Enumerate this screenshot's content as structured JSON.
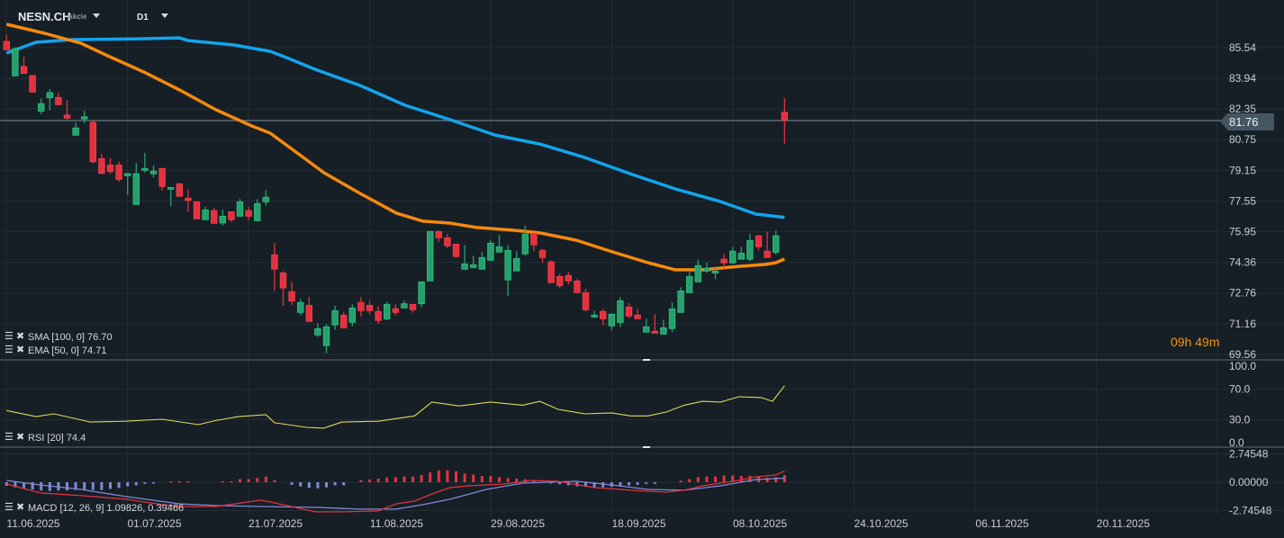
{
  "header": {
    "symbol": "NESN.CH",
    "instrument_type": "Akcie",
    "timeframe": "D1"
  },
  "countdown": "09h 49m",
  "current_price": "81.76",
  "colors": {
    "background": "#161f26",
    "up": "#26a06d",
    "down": "#e2323f",
    "sma": "#13a4ec",
    "ema": "#f6890f",
    "rsi": "#e0d85a",
    "macd": "#e2323f",
    "signal": "#7f8ad6"
  },
  "indicators": {
    "sma_label": "SMA [100,  0] 76.70",
    "ema_label": "EMA [50, 0] 74.71",
    "rsi_label": "RSI [20]  74.4",
    "macd_label": "MACD  [12,  26,  9] 1.09826,  0.39466"
  },
  "chart_data": [
    {
      "type": "candlestick",
      "pane": "price",
      "y_ticks": [
        "85.54",
        "83.94",
        "82.35",
        "80.75",
        "79.15",
        "77.55",
        "75.95",
        "74.36",
        "72.76",
        "71.16",
        "69.56"
      ],
      "ylim": [
        69.56,
        85.54
      ],
      "x_tick_labels": [
        "11.06.2025",
        "01.07.2025",
        "21.07.2025",
        "11.08.2025",
        "29.08.2025",
        "18.09.2025",
        "08.10.2025",
        "24.10.2025",
        "06.11.2025",
        "20.11.2025"
      ],
      "ohlc": [
        [
          85.87,
          86.2,
          85.43,
          85.43
        ],
        [
          84.07,
          85.55,
          84.07,
          85.48
        ],
        [
          84.56,
          85.07,
          84.2,
          84.2
        ],
        [
          84.09,
          84.09,
          83.23,
          83.23
        ],
        [
          82.23,
          82.9,
          82.09,
          82.63
        ],
        [
          82.93,
          83.38,
          82.27,
          83.2
        ],
        [
          82.95,
          83.2,
          82.57,
          82.57
        ],
        [
          82.03,
          82.8,
          81.8,
          81.87
        ],
        [
          80.98,
          81.65,
          80.98,
          81.36
        ],
        [
          81.83,
          82.26,
          81.62,
          81.94
        ],
        [
          81.65,
          81.7,
          79.5,
          79.6
        ],
        [
          79.76,
          80.0,
          78.99,
          78.99
        ],
        [
          79.43,
          79.81,
          78.95,
          79.09
        ],
        [
          79.43,
          79.62,
          78.57,
          78.68
        ],
        [
          78.87,
          79.01,
          77.87,
          78.98
        ],
        [
          77.37,
          79.54,
          77.37,
          78.97
        ],
        [
          79.15,
          80.06,
          79.04,
          79.25
        ],
        [
          78.97,
          79.4,
          78.78,
          79.11
        ],
        [
          79.25,
          79.25,
          78.1,
          78.31
        ],
        [
          78.17,
          78.26,
          77.29,
          78.26
        ],
        [
          78.45,
          78.5,
          77.8,
          77.8
        ],
        [
          77.7,
          78.14,
          76.98,
          77.59
        ],
        [
          77.51,
          77.51,
          76.62,
          76.62
        ],
        [
          76.58,
          77.25,
          76.58,
          77.09
        ],
        [
          77.05,
          77.2,
          76.39,
          76.39
        ],
        [
          76.41,
          77.1,
          76.27,
          76.76
        ],
        [
          76.99,
          76.99,
          76.46,
          76.58
        ],
        [
          76.76,
          77.65,
          76.76,
          77.51
        ],
        [
          77.05,
          77.25,
          76.56,
          76.76
        ],
        [
          76.53,
          77.65,
          76.48,
          77.42
        ],
        [
          77.51,
          78.12,
          77.32,
          77.75
        ],
        [
          74.75,
          75.37,
          72.87,
          74.0
        ],
        [
          73.81,
          73.9,
          72.1,
          73.02
        ],
        [
          72.83,
          73.34,
          72.15,
          72.34
        ],
        [
          71.75,
          72.45,
          71.61,
          72.27
        ],
        [
          72.12,
          72.56,
          71.28,
          71.28
        ],
        [
          70.58,
          71.2,
          70.47,
          70.9
        ],
        [
          70.02,
          71.15,
          69.62,
          71.0
        ],
        [
          71.1,
          72.09,
          70.84,
          71.84
        ],
        [
          71.61,
          71.75,
          70.95,
          70.95
        ],
        [
          71.23,
          72.18,
          71.03,
          71.98
        ],
        [
          72.27,
          72.56,
          71.54,
          71.84
        ],
        [
          72.12,
          72.36,
          71.64,
          71.84
        ],
        [
          71.8,
          72.08,
          71.14,
          71.33
        ],
        [
          71.41,
          72.3,
          71.35,
          72.17
        ],
        [
          71.94,
          72.17,
          71.59,
          71.75
        ],
        [
          71.98,
          72.36,
          71.98,
          72.2
        ],
        [
          72.17,
          72.17,
          71.73,
          71.89
        ],
        [
          72.2,
          73.34,
          72.01,
          73.34
        ],
        [
          73.39,
          75.97,
          73.39,
          75.97
        ],
        [
          75.97,
          75.97,
          75.41,
          75.64
        ],
        [
          75.64,
          75.84,
          75.1,
          75.22
        ],
        [
          75.31,
          75.31,
          74.59,
          74.66
        ],
        [
          74.0,
          75.27,
          74.0,
          74.28
        ],
        [
          74.09,
          74.7,
          74.04,
          74.23
        ],
        [
          74.0,
          74.89,
          74.0,
          74.61
        ],
        [
          74.47,
          75.5,
          74.42,
          75.36
        ],
        [
          74.89,
          75.79,
          74.89,
          75.17
        ],
        [
          73.44,
          75.27,
          72.59,
          74.98
        ],
        [
          73.91,
          74.94,
          73.91,
          74.56
        ],
        [
          74.8,
          76.26,
          74.7,
          75.83
        ],
        [
          75.87,
          75.9,
          74.94,
          75.27
        ],
        [
          74.98,
          75.06,
          74.33,
          74.61
        ],
        [
          74.38,
          74.47,
          73.3,
          73.3
        ],
        [
          73.62,
          73.76,
          73.01,
          73.15
        ],
        [
          73.67,
          73.86,
          73.2,
          73.39
        ],
        [
          73.39,
          73.48,
          72.78,
          72.78
        ],
        [
          72.78,
          73.0,
          71.8,
          71.89
        ],
        [
          71.51,
          71.84,
          71.47,
          71.61
        ],
        [
          71.8,
          71.94,
          71.09,
          71.42
        ],
        [
          71.05,
          71.66,
          70.81,
          71.66
        ],
        [
          71.23,
          72.55,
          70.99,
          72.36
        ],
        [
          72.03,
          72.23,
          71.45,
          71.56
        ],
        [
          71.61,
          71.94,
          71.42,
          71.42
        ],
        [
          70.72,
          71.42,
          70.72,
          71.0
        ],
        [
          70.77,
          71.66,
          70.67,
          70.67
        ],
        [
          70.62,
          71.37,
          70.62,
          70.95
        ],
        [
          70.91,
          72.27,
          70.72,
          71.94
        ],
        [
          71.75,
          73.06,
          71.75,
          72.87
        ],
        [
          72.78,
          73.86,
          72.78,
          73.62
        ],
        [
          73.34,
          74.5,
          73.34,
          74.19
        ],
        [
          73.9,
          74.37,
          73.81,
          74.05
        ],
        [
          73.8,
          74.14,
          73.48,
          73.9
        ],
        [
          74.52,
          74.8,
          74.05,
          74.33
        ],
        [
          74.33,
          75.17,
          74.28,
          74.94
        ],
        [
          74.52,
          75.17,
          74.52,
          74.84
        ],
        [
          74.52,
          75.83,
          74.42,
          75.5
        ],
        [
          75.74,
          75.8,
          74.98,
          75.17
        ],
        [
          74.94,
          75.97,
          74.61,
          74.61
        ],
        [
          74.88,
          76.01,
          74.75,
          75.74
        ],
        [
          82.17,
          82.92,
          80.54,
          81.76
        ]
      ],
      "sma_100": [
        [
          0,
          85.26
        ],
        [
          3.4,
          85.82
        ],
        [
          7.6,
          85.96
        ],
        [
          14.9,
          86.0
        ],
        [
          20,
          86.05
        ],
        [
          21,
          85.91
        ],
        [
          26.3,
          85.68
        ],
        [
          30.5,
          85.35
        ],
        [
          32.6,
          84.98
        ],
        [
          35.7,
          84.41
        ],
        [
          40.9,
          83.57
        ],
        [
          46.1,
          82.54
        ],
        [
          51.3,
          81.79
        ],
        [
          56.5,
          80.99
        ],
        [
          61.7,
          80.52
        ],
        [
          66.9,
          79.82
        ],
        [
          72.1,
          78.98
        ],
        [
          77.4,
          78.18
        ],
        [
          82.6,
          77.52
        ],
        [
          86.7,
          76.87
        ],
        [
          90,
          76.7
        ]
      ],
      "ema_50": [
        [
          0,
          86.76
        ],
        [
          4.4,
          86.29
        ],
        [
          8.6,
          85.77
        ],
        [
          11.7,
          85.12
        ],
        [
          15.9,
          84.27
        ],
        [
          20,
          83.34
        ],
        [
          24.2,
          82.31
        ],
        [
          28.4,
          81.46
        ],
        [
          30.5,
          81.09
        ],
        [
          33.6,
          80.06
        ],
        [
          36.7,
          79.03
        ],
        [
          40.9,
          77.95
        ],
        [
          45.1,
          76.92
        ],
        [
          48.2,
          76.5
        ],
        [
          51.3,
          76.4
        ],
        [
          54.4,
          76.17
        ],
        [
          58.6,
          76.03
        ],
        [
          61.7,
          75.89
        ],
        [
          65.9,
          75.51
        ],
        [
          70.1,
          74.9
        ],
        [
          74.2,
          74.34
        ],
        [
          77.4,
          73.97
        ],
        [
          80.5,
          73.97
        ],
        [
          84.7,
          74.15
        ],
        [
          87.8,
          74.25
        ],
        [
          89,
          74.34
        ],
        [
          90,
          74.53
        ]
      ]
    },
    {
      "type": "line",
      "pane": "rsi",
      "y_ticks": [
        "100.0",
        "70.0",
        "30.0",
        "0.0"
      ],
      "ylim": [
        0,
        100
      ],
      "rsi_20": [
        [
          0,
          42
        ],
        [
          3.4,
          34
        ],
        [
          5.5,
          37.6
        ],
        [
          9.7,
          27
        ],
        [
          13.8,
          28
        ],
        [
          18,
          30.6
        ],
        [
          22.2,
          23.5
        ],
        [
          24.2,
          29
        ],
        [
          26.8,
          34
        ],
        [
          30,
          36.5
        ],
        [
          31,
          26
        ],
        [
          34.7,
          20
        ],
        [
          36.7,
          19
        ],
        [
          38.8,
          27
        ],
        [
          43,
          28
        ],
        [
          47.2,
          35
        ],
        [
          49.2,
          53
        ],
        [
          52.4,
          48
        ],
        [
          56,
          53
        ],
        [
          59.7,
          49
        ],
        [
          61.7,
          54
        ],
        [
          63.8,
          43.5
        ],
        [
          66.9,
          37.6
        ],
        [
          70,
          39
        ],
        [
          72.2,
          35
        ],
        [
          74.2,
          35
        ],
        [
          76.3,
          40
        ],
        [
          78.4,
          49
        ],
        [
          80.5,
          54
        ],
        [
          82.6,
          53
        ],
        [
          84.7,
          60
        ],
        [
          87.3,
          59
        ],
        [
          88.6,
          54
        ],
        [
          90,
          74.4
        ]
      ]
    },
    {
      "type": "line+bar",
      "pane": "macd",
      "y_ticks": [
        "2.74548",
        "0.00000",
        "-2.74548"
      ],
      "ylim": [
        -2.74548,
        2.74548
      ],
      "macd": [
        [
          0,
          -0.17
        ],
        [
          3.9,
          -1.04
        ],
        [
          8.6,
          -1.3
        ],
        [
          13.8,
          -1.65
        ],
        [
          18,
          -2.17
        ],
        [
          20,
          -2.35
        ],
        [
          24.2,
          -2.35
        ],
        [
          29.4,
          -1.74
        ],
        [
          30.5,
          -1.91
        ],
        [
          35.7,
          -2.87
        ],
        [
          38.8,
          -2.87
        ],
        [
          43,
          -2.78
        ],
        [
          45.1,
          -2.09
        ],
        [
          47.2,
          -1.83
        ],
        [
          49.2,
          -1.13
        ],
        [
          51.3,
          -0.52
        ],
        [
          53.4,
          -0.35
        ],
        [
          57.6,
          -0.17
        ],
        [
          60.7,
          0.17
        ],
        [
          63.8,
          0.09
        ],
        [
          68,
          -0.52
        ],
        [
          72.2,
          -0.78
        ],
        [
          76.3,
          -0.96
        ],
        [
          78.4,
          -0.78
        ],
        [
          80.5,
          -0.35
        ],
        [
          84.7,
          0.17
        ],
        [
          86.7,
          0.52
        ],
        [
          89,
          0.7
        ],
        [
          90,
          1.1
        ]
      ],
      "signal": [
        [
          0,
          0.17
        ],
        [
          3.9,
          -0.26
        ],
        [
          8.6,
          -0.7
        ],
        [
          13.8,
          -1.39
        ],
        [
          20,
          -2.09
        ],
        [
          24.2,
          -2.26
        ],
        [
          29.4,
          -2.35
        ],
        [
          35.7,
          -2.43
        ],
        [
          40.9,
          -2.61
        ],
        [
          45.1,
          -2.61
        ],
        [
          48.2,
          -2.17
        ],
        [
          51.3,
          -1.65
        ],
        [
          55.5,
          -0.7
        ],
        [
          59.7,
          -0.09
        ],
        [
          66,
          0.09
        ],
        [
          70,
          -0.26
        ],
        [
          74.2,
          -0.7
        ],
        [
          78.4,
          -0.78
        ],
        [
          82.6,
          -0.35
        ],
        [
          86.7,
          0.26
        ],
        [
          90,
          0.39
        ]
      ],
      "histogram": [
        -0.35,
        -0.5,
        -0.6,
        -0.7,
        -0.8,
        -0.85,
        -0.8,
        -0.8,
        -0.75,
        -0.7,
        -0.75,
        -0.75,
        -0.65,
        -0.55,
        -0.4,
        -0.3,
        -0.15,
        -0.08,
        0,
        0.08,
        0.1,
        0.1,
        0,
        0,
        0,
        0.1,
        0.1,
        0.3,
        0.3,
        0.4,
        0.55,
        0.2,
        0,
        -0.25,
        -0.4,
        -0.55,
        -0.6,
        -0.5,
        -0.3,
        -0.3,
        0,
        0.2,
        0.25,
        0.35,
        0.45,
        0.5,
        0.55,
        0.55,
        0.7,
        0.95,
        1.15,
        1.15,
        1.05,
        0.85,
        0.75,
        0.6,
        0.6,
        0.5,
        0.4,
        0.35,
        0.3,
        0.15,
        0,
        -0.1,
        -0.2,
        -0.3,
        -0.4,
        -0.45,
        -0.5,
        -0.5,
        -0.45,
        -0.4,
        -0.3,
        -0.25,
        -0.15,
        -0.15,
        0,
        0,
        0.15,
        0.3,
        0.5,
        0.55,
        0.55,
        0.65,
        0.65,
        0.6,
        0.6,
        0.5,
        0.45,
        0.5,
        0.7
      ]
    }
  ]
}
